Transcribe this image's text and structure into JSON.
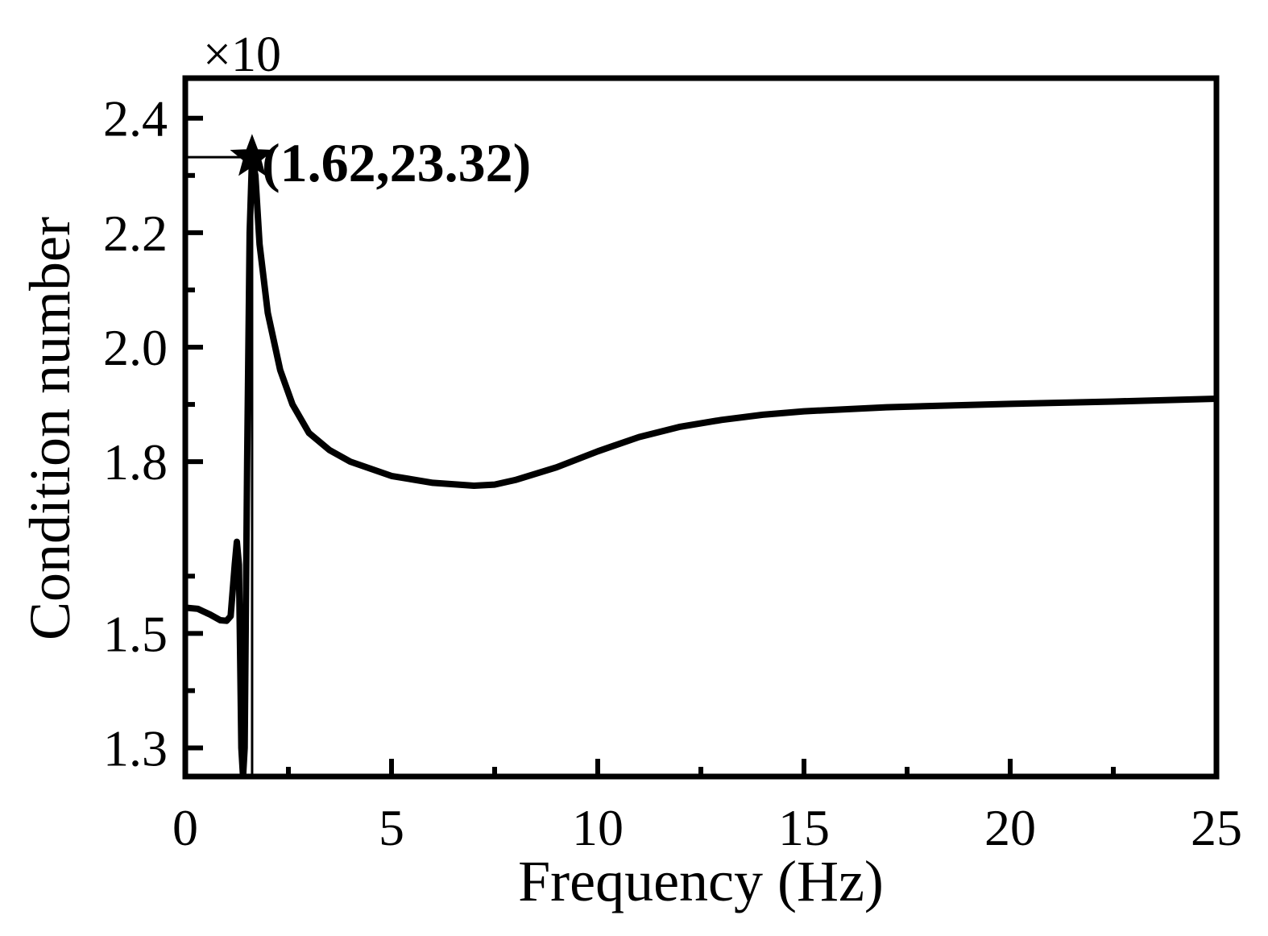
{
  "chart_data": {
    "type": "line",
    "title": "",
    "xlabel": "Frequency (Hz)",
    "ylabel": "Condition number",
    "y_multiplier_label": "×10",
    "xlim": [
      0,
      25
    ],
    "ylim": [
      1.25,
      2.47
    ],
    "x_ticks": [
      0,
      5,
      10,
      15,
      20,
      25
    ],
    "x_tick_labels": [
      "0",
      "5",
      "10",
      "15",
      "20",
      "25"
    ],
    "x_minor_ticks": [
      2.5,
      7.5,
      12.5,
      17.5,
      22.5
    ],
    "y_ticks": [
      1.3,
      1.5,
      1.8,
      2.0,
      2.2,
      2.4
    ],
    "y_tick_labels": [
      "1.3",
      "1.5",
      "1.8",
      "2.0",
      "2.2",
      "2.4"
    ],
    "y_minor_ticks": [
      1.4,
      1.6,
      1.9,
      2.1,
      2.3
    ],
    "grid": false,
    "legend": "none",
    "line_color": "#000000",
    "series": [
      {
        "values": [
          [
            0.0,
            1.545
          ],
          [
            0.3,
            1.543
          ],
          [
            0.6,
            1.533
          ],
          [
            0.85,
            1.523
          ],
          [
            1.0,
            1.522
          ],
          [
            1.1,
            1.53
          ],
          [
            1.2,
            1.62
          ],
          [
            1.25,
            1.66
          ],
          [
            1.3,
            1.62
          ],
          [
            1.36,
            1.3
          ],
          [
            1.4,
            1.25
          ],
          [
            1.44,
            1.3
          ],
          [
            1.5,
            1.8
          ],
          [
            1.56,
            2.2
          ],
          [
            1.62,
            2.332
          ],
          [
            1.7,
            2.3
          ],
          [
            1.8,
            2.18
          ],
          [
            2.0,
            2.06
          ],
          [
            2.3,
            1.96
          ],
          [
            2.6,
            1.9
          ],
          [
            3.0,
            1.85
          ],
          [
            3.5,
            1.82
          ],
          [
            4.0,
            1.8
          ],
          [
            5.0,
            1.775
          ],
          [
            6.0,
            1.763
          ],
          [
            7.0,
            1.758
          ],
          [
            7.5,
            1.76
          ],
          [
            8.0,
            1.768
          ],
          [
            9.0,
            1.79
          ],
          [
            10.0,
            1.818
          ],
          [
            11.0,
            1.843
          ],
          [
            12.0,
            1.861
          ],
          [
            13.0,
            1.873
          ],
          [
            14.0,
            1.882
          ],
          [
            15.0,
            1.888
          ],
          [
            17.0,
            1.895
          ],
          [
            20.0,
            1.901
          ],
          [
            22.5,
            1.905
          ],
          [
            25.0,
            1.91
          ]
        ]
      }
    ],
    "annotation": {
      "label": "(1.62,23.32)",
      "x": 1.62,
      "y": 2.332,
      "marker": "star"
    }
  }
}
